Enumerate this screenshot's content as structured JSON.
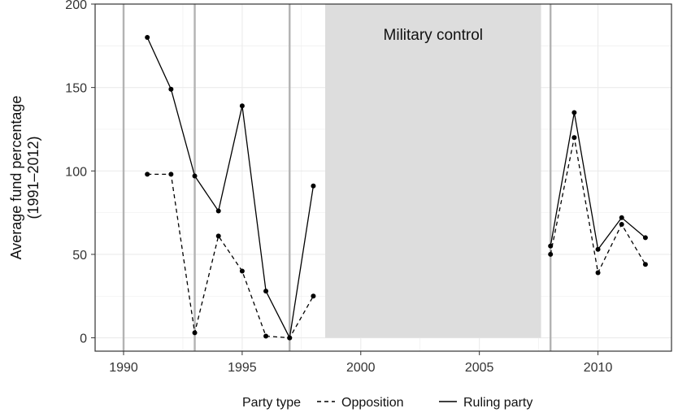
{
  "chart_data": {
    "type": "line",
    "title": "",
    "xlabel": "",
    "ylabel": "Average fund percentage",
    "ylabel_sub": "(1991–2012)",
    "xlim": [
      1988.8,
      2013.1
    ],
    "ylim": [
      -8,
      200
    ],
    "x_ticks": [
      1990,
      1995,
      2000,
      2005,
      2010
    ],
    "y_ticks": [
      0,
      50,
      100,
      150,
      200
    ],
    "grid": true,
    "legend_position": "bottom",
    "legend_title": "Party type",
    "series": [
      {
        "name": "Opposition",
        "linestyle": "dashed",
        "color": "#000000",
        "segments": [
          [
            [
              1991,
              98
            ],
            [
              1992,
              98
            ],
            [
              1993,
              3
            ],
            [
              1994,
              61
            ],
            [
              1995,
              40
            ],
            [
              1996,
              1
            ],
            [
              1997,
              0
            ],
            [
              1998,
              25
            ]
          ],
          [
            [
              2008,
              50
            ],
            [
              2009,
              120
            ],
            [
              2010,
              39
            ],
            [
              2011,
              68
            ],
            [
              2012,
              44
            ]
          ]
        ]
      },
      {
        "name": "Ruling party",
        "linestyle": "solid",
        "color": "#000000",
        "segments": [
          [
            [
              1991,
              180
            ],
            [
              1992,
              149
            ],
            [
              1993,
              97
            ],
            [
              1994,
              76
            ],
            [
              1995,
              139
            ],
            [
              1996,
              28
            ],
            [
              1997,
              0
            ],
            [
              1998,
              91
            ]
          ],
          [
            [
              2008,
              55
            ],
            [
              2009,
              135
            ],
            [
              2010,
              53
            ],
            [
              2011,
              72
            ],
            [
              2012,
              60
            ]
          ]
        ]
      }
    ],
    "vertical_lines": [
      1990,
      1993,
      1997,
      2008
    ],
    "shaded_region": {
      "x_start": 1998.5,
      "x_end": 2007.6,
      "y_start": 0,
      "y_end": 200,
      "label": "Military control",
      "color": "#dddddd"
    },
    "colors": {
      "grid": "#ebebeb",
      "vline": "#b3b3b3",
      "panel_border": "#333333"
    }
  }
}
